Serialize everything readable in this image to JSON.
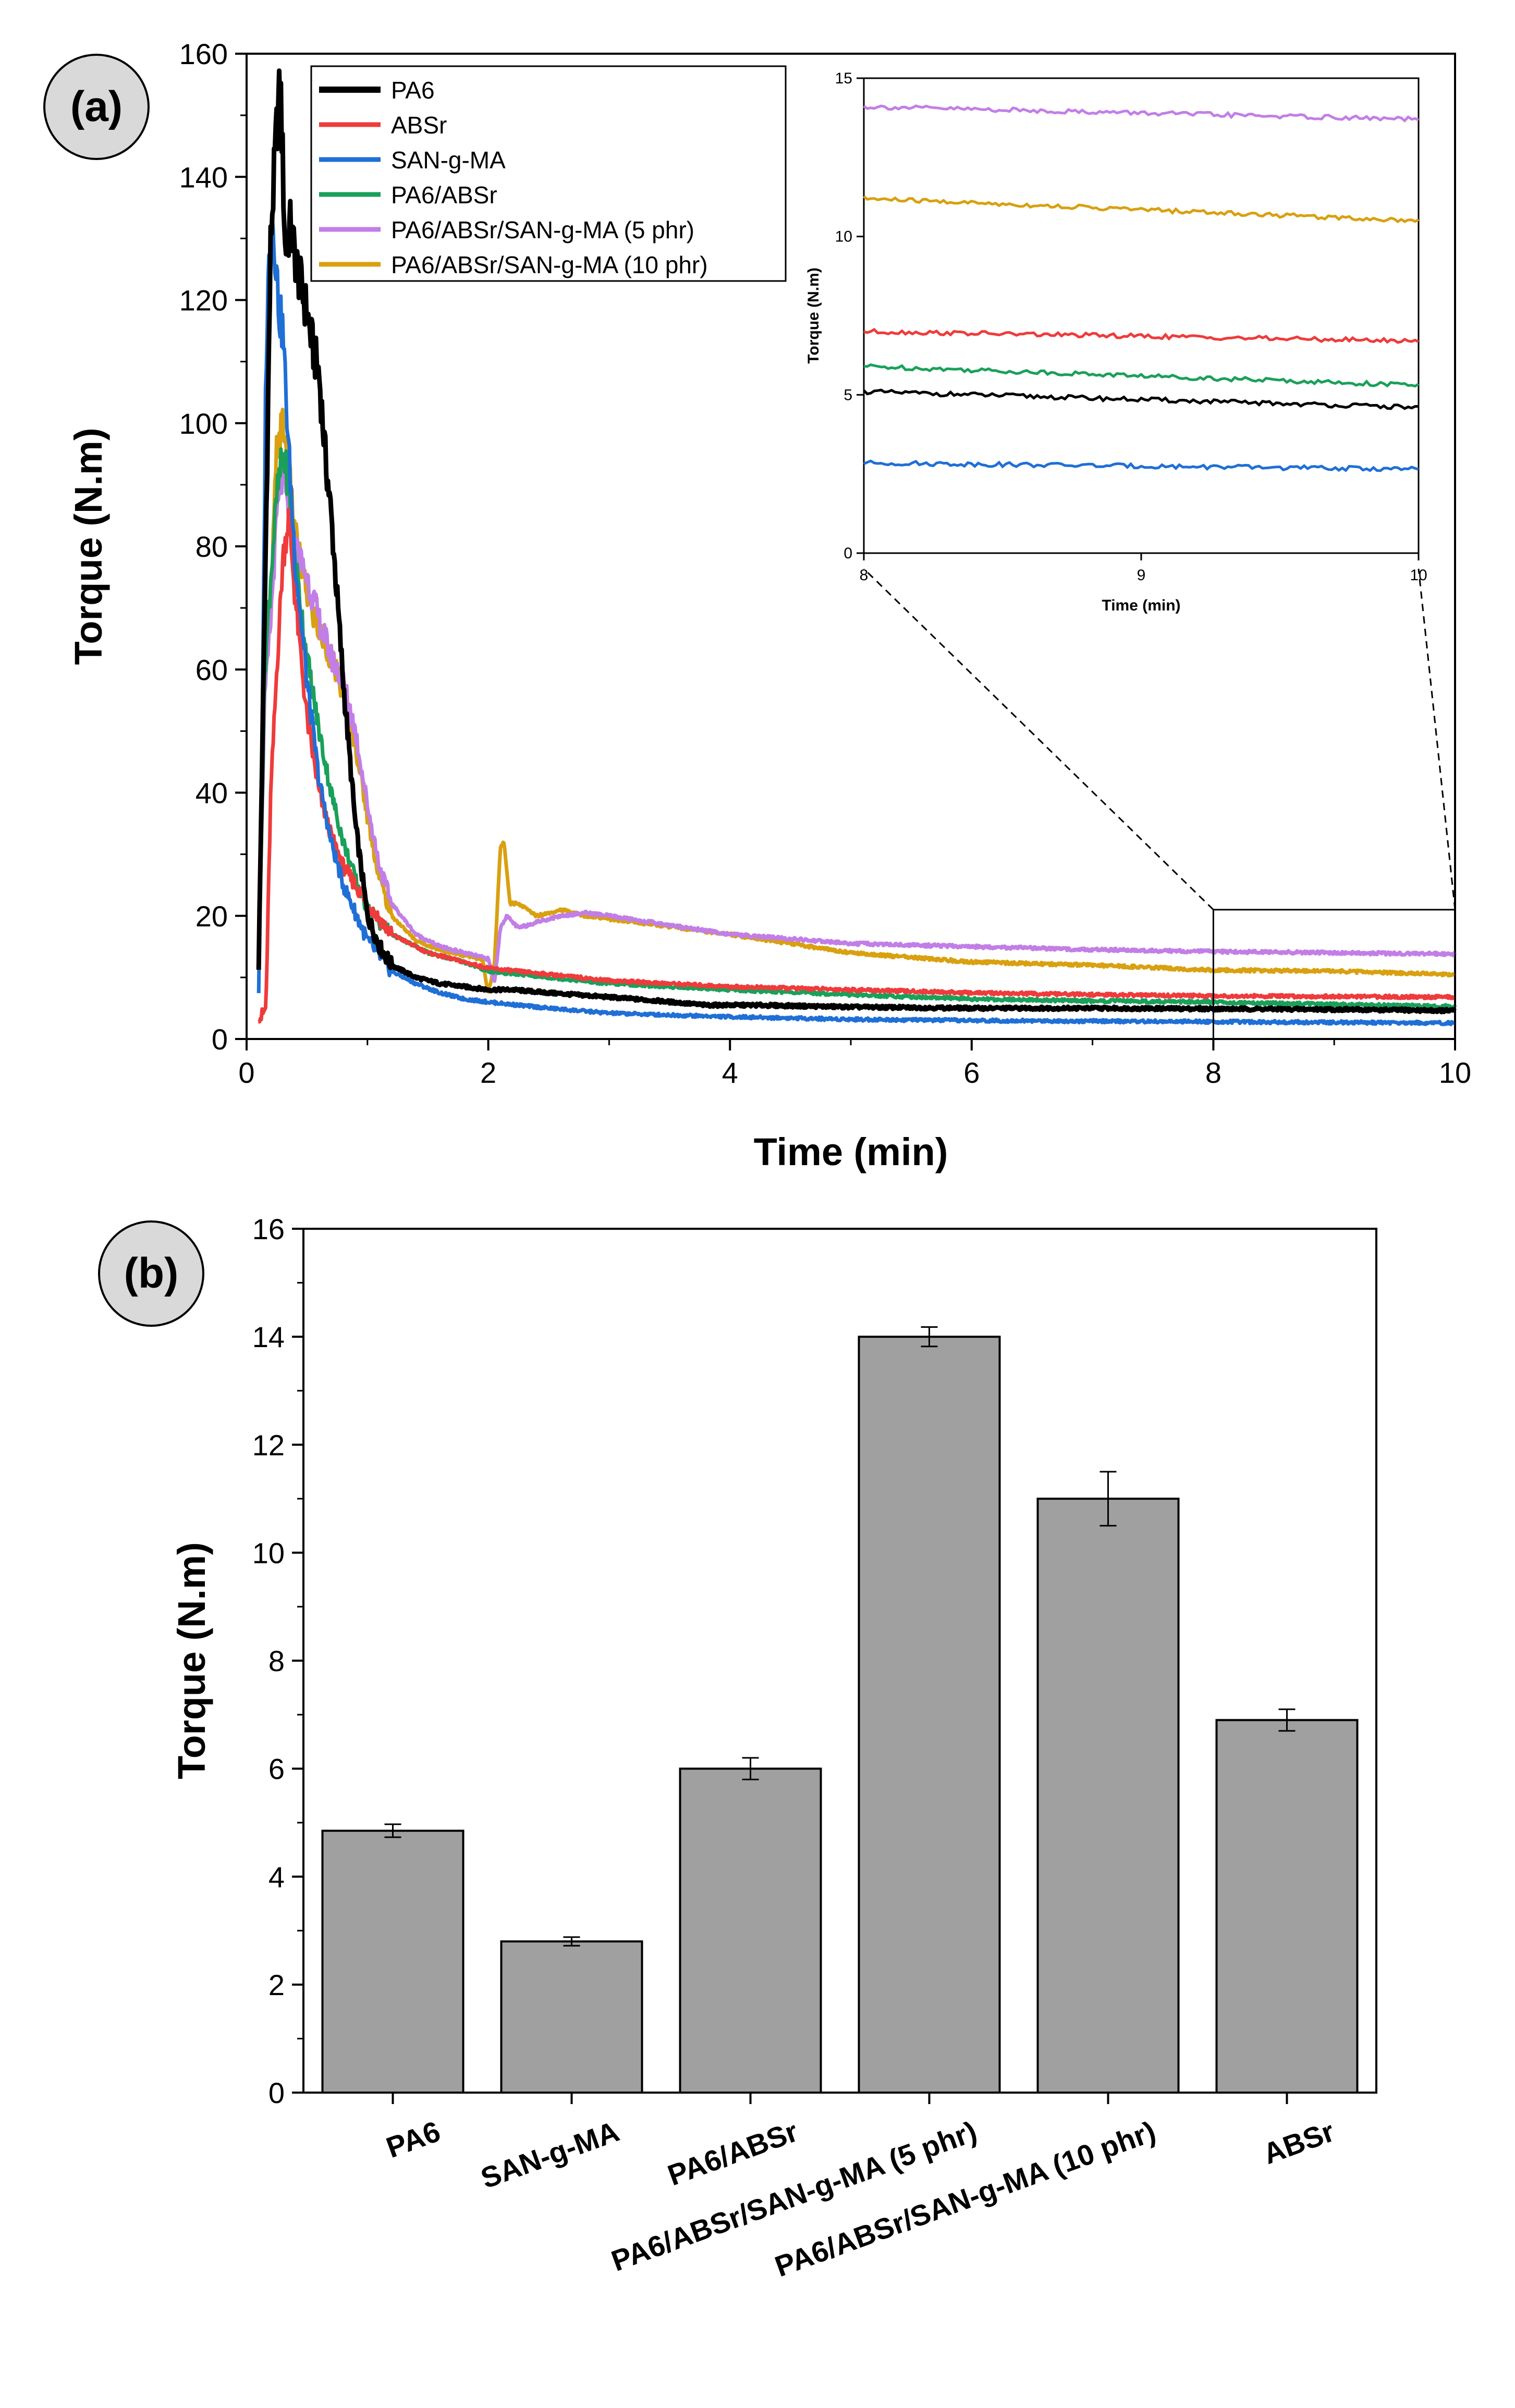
{
  "colors": {
    "PA6": "#000000",
    "ABSr": "#ef3b3b",
    "SAN-g-MA": "#1f6fd6",
    "PA6/ABSr": "#1aa05a",
    "PA6/ABSr/SAN-g-MA (5 phr)": "#c27ee6",
    "PA6/ABSr/SAN-g-MA (10 phr)": "#d9a00f",
    "bar": "#a0a0a0",
    "panel_circle": "#d9d9d9"
  },
  "chart_data": [
    {
      "type": "line",
      "panel_label": "(a)",
      "xlabel": "Time (min)",
      "ylabel": "Torque (N.m)",
      "xlim": [
        0,
        10
      ],
      "ylim": [
        0,
        160
      ],
      "xticks": [
        "0",
        "2",
        "4",
        "6",
        "8",
        "10"
      ],
      "yticks": [
        "0",
        "20",
        "40",
        "60",
        "80",
        "100",
        "120",
        "140",
        "160"
      ],
      "legend_position": "top-left",
      "series": [
        {
          "name": "PA6",
          "x": [
            0.1,
            0.15,
            0.2,
            0.25,
            0.28,
            0.32,
            0.36,
            0.42,
            0.5,
            0.55,
            0.6,
            0.65,
            0.7,
            0.8,
            0.9,
            1.0,
            1.1,
            1.2,
            1.4,
            1.6,
            1.8,
            2.0,
            2.2,
            2.5,
            3.0,
            3.4,
            3.8,
            4.2,
            5.0,
            6.0,
            7.0,
            8.0,
            9.0,
            10.0
          ],
          "y": [
            12,
            70,
            130,
            148,
            155,
            128,
            132,
            125,
            118,
            112,
            108,
            95,
            85,
            58,
            35,
            20,
            15,
            12,
            10,
            9,
            8.5,
            8,
            8,
            7.5,
            6.8,
            6.2,
            5.5,
            5.5,
            5.2,
            5.0,
            5.0,
            4.9,
            4.8,
            4.6
          ]
        },
        {
          "name": "ABSr",
          "x": [
            0.1,
            0.12,
            0.16,
            0.2,
            0.25,
            0.3,
            0.35,
            0.4,
            0.5,
            0.6,
            0.7,
            0.8,
            1.0,
            1.2,
            1.5,
            1.8,
            2.0,
            2.5,
            3.0,
            4.0,
            5.0,
            6.0,
            7.0,
            8.0,
            9.0,
            10.0
          ],
          "y": [
            4,
            3.5,
            5,
            40,
            60,
            78,
            85,
            72,
            52,
            40,
            33,
            28,
            22,
            17,
            14,
            12.5,
            11.5,
            10.5,
            9.5,
            8.5,
            8,
            7.5,
            7.2,
            7.0,
            6.9,
            6.8
          ]
        },
        {
          "name": "SAN-g-MA",
          "x": [
            0.1,
            0.13,
            0.16,
            0.2,
            0.23,
            0.27,
            0.3,
            0.35,
            0.4,
            0.5,
            0.6,
            0.7,
            0.8,
            1.0,
            1.2,
            1.4,
            1.6,
            1.8,
            2.0,
            2.5,
            3.0,
            4.0,
            5.0,
            6.0,
            7.0,
            8.0,
            9.0,
            10.0
          ],
          "y": [
            8,
            50,
            110,
            136,
            130,
            118,
            115,
            95,
            78,
            58,
            42,
            32,
            25,
            16,
            11,
            9,
            7.5,
            6.5,
            6,
            5,
            4.2,
            3.6,
            3.2,
            3.0,
            2.9,
            2.8,
            2.7,
            2.6
          ]
        },
        {
          "name": "PA6/ABSr",
          "x": [
            0.1,
            0.15,
            0.2,
            0.25,
            0.3,
            0.35,
            0.4,
            0.5,
            0.6,
            0.7,
            0.8,
            0.9,
            1.0,
            1.2,
            1.5,
            1.8,
            2.0,
            2.5,
            3.0,
            4.0,
            5.0,
            6.0,
            7.0,
            8.0,
            9.0,
            10.0
          ],
          "y": [
            12,
            60,
            75,
            88,
            95,
            90,
            78,
            62,
            50,
            40,
            32,
            26,
            21,
            17,
            14,
            12.5,
            11,
            10,
            9,
            8,
            7.2,
            6.5,
            6.2,
            6.0,
            5.6,
            5.3
          ]
        },
        {
          "name": "PA6/ABSr/SAN-g-MA (5 phr)",
          "x": [
            0.1,
            0.15,
            0.2,
            0.25,
            0.3,
            0.35,
            0.4,
            0.5,
            0.6,
            0.7,
            0.8,
            0.9,
            1.0,
            1.1,
            1.2,
            1.4,
            1.6,
            1.8,
            2.0,
            2.05,
            2.1,
            2.15,
            2.25,
            2.4,
            2.6,
            2.8,
            3.0,
            3.5,
            4.0,
            5.0,
            6.0,
            7.0,
            8.0,
            9.0,
            10.0
          ],
          "y": [
            14,
            55,
            68,
            85,
            92,
            85,
            80,
            75,
            68,
            62,
            58,
            50,
            38,
            28,
            22,
            17,
            15,
            14,
            13,
            9,
            18,
            20,
            18,
            19,
            20,
            20.5,
            20,
            18.5,
            17,
            15.5,
            15,
            14.5,
            14.2,
            14.0,
            13.8
          ]
        },
        {
          "name": "PA6/ABSr/SAN-g-MA (10 phr)",
          "x": [
            0.1,
            0.15,
            0.2,
            0.25,
            0.3,
            0.35,
            0.4,
            0.5,
            0.6,
            0.7,
            0.8,
            0.9,
            1.0,
            1.1,
            1.2,
            1.4,
            1.6,
            1.8,
            1.95,
            2.0,
            2.05,
            2.1,
            2.13,
            2.18,
            2.25,
            2.4,
            2.6,
            2.8,
            3.0,
            4.0,
            5.0,
            6.0,
            7.0,
            8.0,
            9.0,
            10.0
          ],
          "y": [
            13,
            65,
            70,
            96,
            100,
            92,
            82,
            72,
            66,
            62,
            56,
            48,
            36,
            26,
            20,
            16,
            14.5,
            13.5,
            13,
            7.5,
            12,
            31,
            32,
            22,
            22,
            20,
            21,
            20,
            19.5,
            17,
            14,
            12.5,
            12,
            11.2,
            11,
            10.5
          ]
        }
      ],
      "inset": {
        "xlim": [
          8,
          10
        ],
        "ylim": [
          0,
          15
        ],
        "xticks": [
          "8",
          "9",
          "10"
        ],
        "yticks": [
          "0",
          "5",
          "10",
          "15"
        ],
        "xlabel": "Time (min)",
        "ylabel": "Torque (N.m)",
        "series": [
          {
            "name": "PA6",
            "y0": 5.1,
            "y1": 4.6
          },
          {
            "name": "ABSr",
            "y0": 7.0,
            "y1": 6.7
          },
          {
            "name": "SAN-g-MA",
            "y0": 2.85,
            "y1": 2.65
          },
          {
            "name": "PA6/ABSr",
            "y0": 5.9,
            "y1": 5.3
          },
          {
            "name": "PA6/ABSr/SAN-g-MA (5 phr)",
            "y0": 14.1,
            "y1": 13.7
          },
          {
            "name": "PA6/ABSr/SAN-g-MA (10 phr)",
            "y0": 11.2,
            "y1": 10.5
          }
        ],
        "zoom_box": {
          "x": [
            8,
            10
          ],
          "y": [
            0,
            21
          ]
        }
      }
    },
    {
      "type": "bar",
      "panel_label": "(b)",
      "xlabel": "",
      "ylabel": "Torque (N.m)",
      "ylim": [
        0,
        16
      ],
      "yticks": [
        "0",
        "2",
        "4",
        "6",
        "8",
        "10",
        "12",
        "14",
        "16"
      ],
      "categories": [
        "PA6",
        "SAN-g-MA",
        "PA6/ABSr",
        "PA6/ABSr/SAN-g-MA (5 phr)",
        "PA6/ABSr/SAN-g-MA (10 phr)",
        "ABSr"
      ],
      "values": [
        4.85,
        2.8,
        6.0,
        14.0,
        11.0,
        6.9
      ],
      "errors": [
        0.12,
        0.08,
        0.2,
        0.18,
        0.5,
        0.2
      ]
    }
  ]
}
